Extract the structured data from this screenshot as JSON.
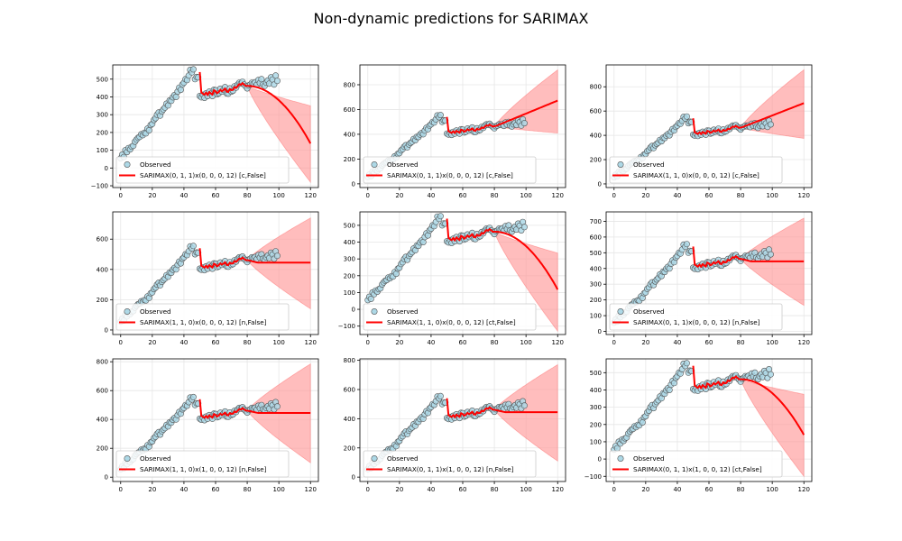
{
  "figure": {
    "title": "Non-dynamic predictions for SARIMAX",
    "colors": {
      "observed_fill": "#add8e6",
      "observed_edge": "#555555",
      "prediction_line": "#ff0000",
      "confidence_band": "#ff9999",
      "grid": "#e6e6e6"
    }
  },
  "chart_data": [
    {
      "type": "line",
      "observed_label": "Observed",
      "prediction_label": "SARIMAX(0, 1, 1)x(0, 0, 0, 12) [c,False]",
      "xlim": [
        -5,
        125
      ],
      "ylim": [
        -110,
        580
      ],
      "xticks": [
        "0",
        "20",
        "40",
        "60",
        "80",
        "100",
        "120"
      ],
      "xtick_values": [
        0,
        20,
        40,
        60,
        80,
        100,
        120
      ],
      "yticks": [
        "−100",
        "0",
        "100",
        "200",
        "300",
        "400",
        "500"
      ],
      "ytick_values": [
        -100,
        0,
        100,
        200,
        300,
        400,
        500
      ],
      "forecast_end": 138,
      "band_upper_end": 350,
      "band_lower_end": -80,
      "forecast_shape": "quadratic"
    },
    {
      "type": "line",
      "observed_label": "Observed",
      "prediction_label": "SARIMAX(0, 1, 1)x(0, 0, 0, 12) [c,False]",
      "xlim": [
        -5,
        125
      ],
      "ylim": [
        -30,
        960
      ],
      "xticks": [
        "0",
        "20",
        "40",
        "60",
        "80",
        "100",
        "120"
      ],
      "xtick_values": [
        0,
        20,
        40,
        60,
        80,
        100,
        120
      ],
      "yticks": [
        "0",
        "200",
        "400",
        "600",
        "800"
      ],
      "ytick_values": [
        0,
        200,
        400,
        600,
        800
      ],
      "forecast_end": 672,
      "band_upper_end": 920,
      "band_lower_end": 410,
      "forecast_shape": "linear"
    },
    {
      "type": "line",
      "observed_label": "Observed",
      "prediction_label": "SARIMAX(1, 1, 0)x(0, 0, 0, 12) [c,False]",
      "xlim": [
        -5,
        125
      ],
      "ylim": [
        -30,
        980
      ],
      "xticks": [
        "0",
        "20",
        "40",
        "60",
        "80",
        "100",
        "120"
      ],
      "xtick_values": [
        0,
        20,
        40,
        60,
        80,
        100,
        120
      ],
      "yticks": [
        "0",
        "200",
        "400",
        "600",
        "800"
      ],
      "ytick_values": [
        0,
        200,
        400,
        600,
        800
      ],
      "forecast_end": 665,
      "band_upper_end": 940,
      "band_lower_end": 375,
      "forecast_shape": "linear"
    },
    {
      "type": "line",
      "observed_label": "Observed",
      "prediction_label": "SARIMAX(1, 1, 0)x(0, 0, 0, 12) [n,False]",
      "xlim": [
        -5,
        125
      ],
      "ylim": [
        -30,
        780
      ],
      "xticks": [
        "0",
        "20",
        "40",
        "60",
        "80",
        "100",
        "120"
      ],
      "xtick_values": [
        0,
        20,
        40,
        60,
        80,
        100,
        120
      ],
      "yticks": [
        "0",
        "200",
        "400",
        "600"
      ],
      "ytick_values": [
        0,
        200,
        400,
        600
      ],
      "forecast_end": 445,
      "band_upper_end": 740,
      "band_lower_end": 140,
      "forecast_shape": "flat"
    },
    {
      "type": "line",
      "observed_label": "Observed",
      "prediction_label": "SARIMAX(1, 1, 0)x(0, 0, 0, 12) [ct,False]",
      "xlim": [
        -5,
        125
      ],
      "ylim": [
        -150,
        580
      ],
      "xticks": [
        "0",
        "20",
        "40",
        "60",
        "80",
        "100",
        "120"
      ],
      "xtick_values": [
        0,
        20,
        40,
        60,
        80,
        100,
        120
      ],
      "yticks": [
        "−100",
        "0",
        "100",
        "200",
        "300",
        "400",
        "500"
      ],
      "ytick_values": [
        -100,
        0,
        100,
        200,
        300,
        400,
        500
      ],
      "forecast_end": 118,
      "band_upper_end": 335,
      "band_lower_end": -130,
      "forecast_shape": "quadratic"
    },
    {
      "type": "line",
      "observed_label": "Observed",
      "prediction_label": "SARIMAX(0, 1, 1)x(0, 0, 0, 12) [n,False]",
      "xlim": [
        -5,
        125
      ],
      "ylim": [
        -20,
        760
      ],
      "xticks": [
        "0",
        "20",
        "40",
        "60",
        "80",
        "100",
        "120"
      ],
      "xtick_values": [
        0,
        20,
        40,
        60,
        80,
        100,
        120
      ],
      "yticks": [
        "0",
        "100",
        "200",
        "300",
        "400",
        "500",
        "600",
        "700"
      ],
      "ytick_values": [
        0,
        100,
        200,
        300,
        400,
        500,
        600,
        700
      ],
      "forecast_end": 445,
      "band_upper_end": 720,
      "band_lower_end": 165,
      "forecast_shape": "flat"
    },
    {
      "type": "line",
      "observed_label": "Observed",
      "prediction_label": "SARIMAX(1, 1, 0)x(1, 0, 0, 12) [n,False]",
      "xlim": [
        -5,
        125
      ],
      "ylim": [
        -30,
        820
      ],
      "xticks": [
        "0",
        "20",
        "40",
        "60",
        "80",
        "100",
        "120"
      ],
      "xtick_values": [
        0,
        20,
        40,
        60,
        80,
        100,
        120
      ],
      "yticks": [
        "0",
        "200",
        "400",
        "600",
        "800"
      ],
      "ytick_values": [
        0,
        200,
        400,
        600,
        800
      ],
      "forecast_end": 445,
      "band_upper_end": 785,
      "band_lower_end": 100,
      "forecast_shape": "flat"
    },
    {
      "type": "line",
      "observed_label": "Observed",
      "prediction_label": "SARIMAX(0, 1, 1)x(1, 0, 0, 12) [n,False]",
      "xlim": [
        -5,
        125
      ],
      "ylim": [
        -30,
        810
      ],
      "xticks": [
        "0",
        "20",
        "40",
        "60",
        "80",
        "100",
        "120"
      ],
      "xtick_values": [
        0,
        20,
        40,
        60,
        80,
        100,
        120
      ],
      "yticks": [
        "0",
        "200",
        "400",
        "600",
        "800"
      ],
      "ytick_values": [
        0,
        200,
        400,
        600,
        800
      ],
      "forecast_end": 445,
      "band_upper_end": 770,
      "band_lower_end": 110,
      "forecast_shape": "flat"
    },
    {
      "type": "line",
      "observed_label": "Observed",
      "prediction_label": "SARIMAX(0, 1, 1)x(1, 0, 0, 12) [ct,False]",
      "xlim": [
        -5,
        125
      ],
      "ylim": [
        -130,
        580
      ],
      "xticks": [
        "0",
        "20",
        "40",
        "60",
        "80",
        "100",
        "120"
      ],
      "xtick_values": [
        0,
        20,
        40,
        60,
        80,
        100,
        120
      ],
      "yticks": [
        "−100",
        "0",
        "100",
        "200",
        "300",
        "400",
        "500"
      ],
      "ytick_values": [
        -100,
        0,
        100,
        200,
        300,
        400,
        500
      ],
      "forecast_end": 140,
      "band_upper_end": 375,
      "band_lower_end": -100,
      "forecast_shape": "quadratic"
    }
  ],
  "observed_series": {
    "x": [
      0,
      1,
      2,
      3,
      4,
      5,
      6,
      7,
      8,
      9,
      10,
      11,
      12,
      13,
      14,
      15,
      16,
      17,
      18,
      19,
      20,
      21,
      22,
      23,
      24,
      25,
      26,
      27,
      28,
      29,
      30,
      31,
      32,
      33,
      34,
      35,
      36,
      37,
      38,
      39,
      40,
      41,
      42,
      43,
      44,
      45,
      46,
      47,
      48,
      49,
      50,
      51,
      52,
      53,
      54,
      55,
      56,
      57,
      58,
      59,
      60,
      61,
      62,
      63,
      64,
      65,
      66,
      67,
      68,
      69,
      70,
      71,
      72,
      73,
      74,
      75,
      76,
      77,
      78,
      79,
      80,
      81,
      82,
      83,
      84,
      85,
      86,
      87,
      88,
      89,
      90,
      91,
      92,
      93,
      94,
      95,
      96,
      97,
      98,
      99
    ],
    "y": [
      55,
      75,
      62,
      100,
      90,
      112,
      105,
      120,
      125,
      148,
      160,
      170,
      175,
      190,
      185,
      198,
      195,
      222,
      212,
      242,
      248,
      270,
      280,
      300,
      312,
      295,
      318,
      330,
      340,
      362,
      352,
      380,
      378,
      398,
      410,
      400,
      430,
      452,
      440,
      470,
      480,
      500,
      495,
      520,
      552,
      538,
      555,
      500,
      512,
      510,
      405,
      398,
      412,
      395,
      420,
      405,
      430,
      418,
      405,
      440,
      438,
      415,
      420,
      446,
      430,
      440,
      455,
      420,
      418,
      448,
      430,
      435,
      460,
      452,
      470,
      480,
      475,
      485,
      470,
      460,
      448,
      465,
      470,
      480,
      475,
      482,
      468,
      495,
      478,
      500,
      470,
      462,
      480,
      492,
      475,
      510,
      498,
      470,
      520,
      490
    ]
  },
  "prediction_in_sample": {
    "x": [
      50,
      51,
      52,
      53,
      54,
      55,
      56,
      57,
      58,
      59,
      60,
      61,
      62,
      63,
      64,
      65,
      66,
      67,
      68,
      69,
      70,
      71,
      72,
      73,
      74,
      75,
      76,
      77,
      78,
      79
    ],
    "y": [
      540,
      425,
      418,
      412,
      425,
      410,
      428,
      420,
      412,
      438,
      432,
      420,
      428,
      440,
      432,
      438,
      448,
      430,
      428,
      445,
      438,
      440,
      455,
      450,
      462,
      472,
      468,
      478,
      470,
      462
    ]
  }
}
